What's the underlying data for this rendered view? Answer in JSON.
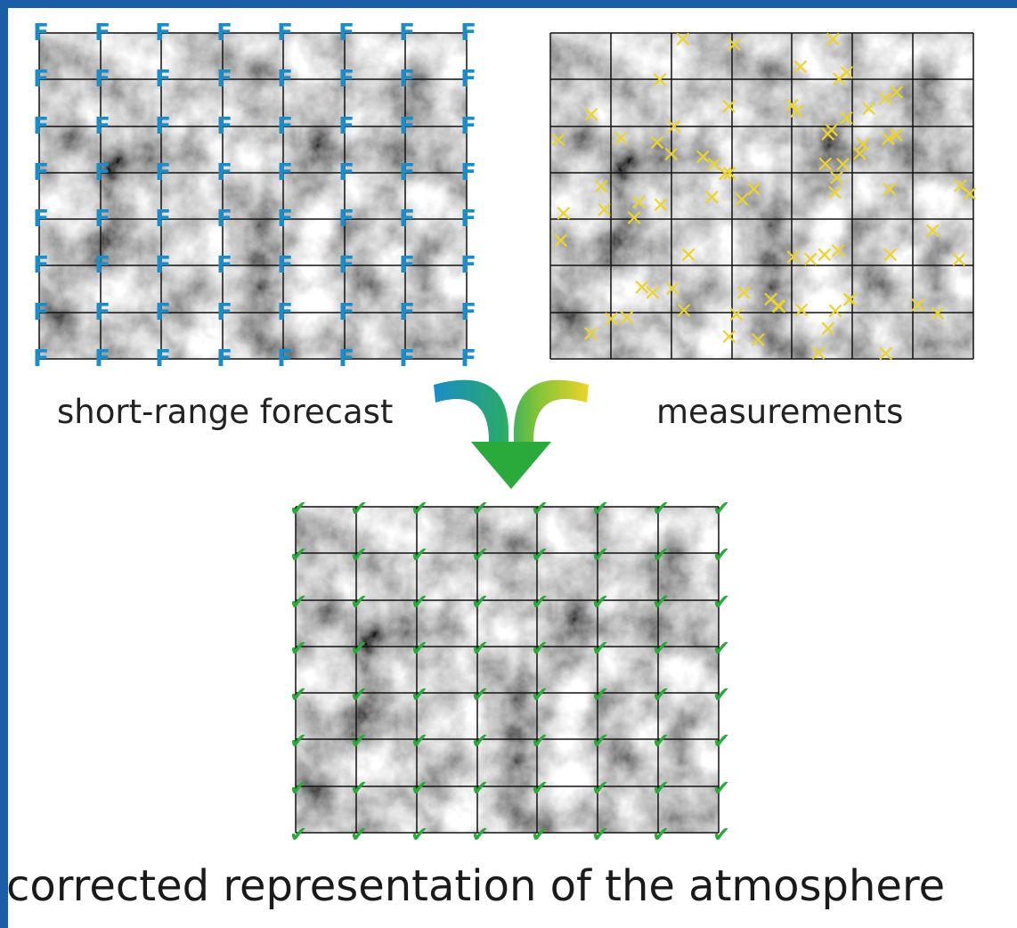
{
  "captions": {
    "forecast": "short-range forecast",
    "measurements": "measurements",
    "result": "corrected representation of the atmosphere"
  },
  "marks": {
    "forecast_symbol": "F",
    "measurement_symbol": "×",
    "result_symbol": "✔"
  },
  "colors": {
    "frame": "#1a5ea8",
    "forecast_mark": "#1a8cc8",
    "measurement_mark": "#ecd42a",
    "result_mark": "#2aaa3a",
    "arrow_left": "#1a8cc8",
    "arrow_right": "#ecd42a",
    "arrow_tip": "#2aaa3a"
  },
  "icons": {
    "merge_arrow": "merge-arrow-icon"
  }
}
